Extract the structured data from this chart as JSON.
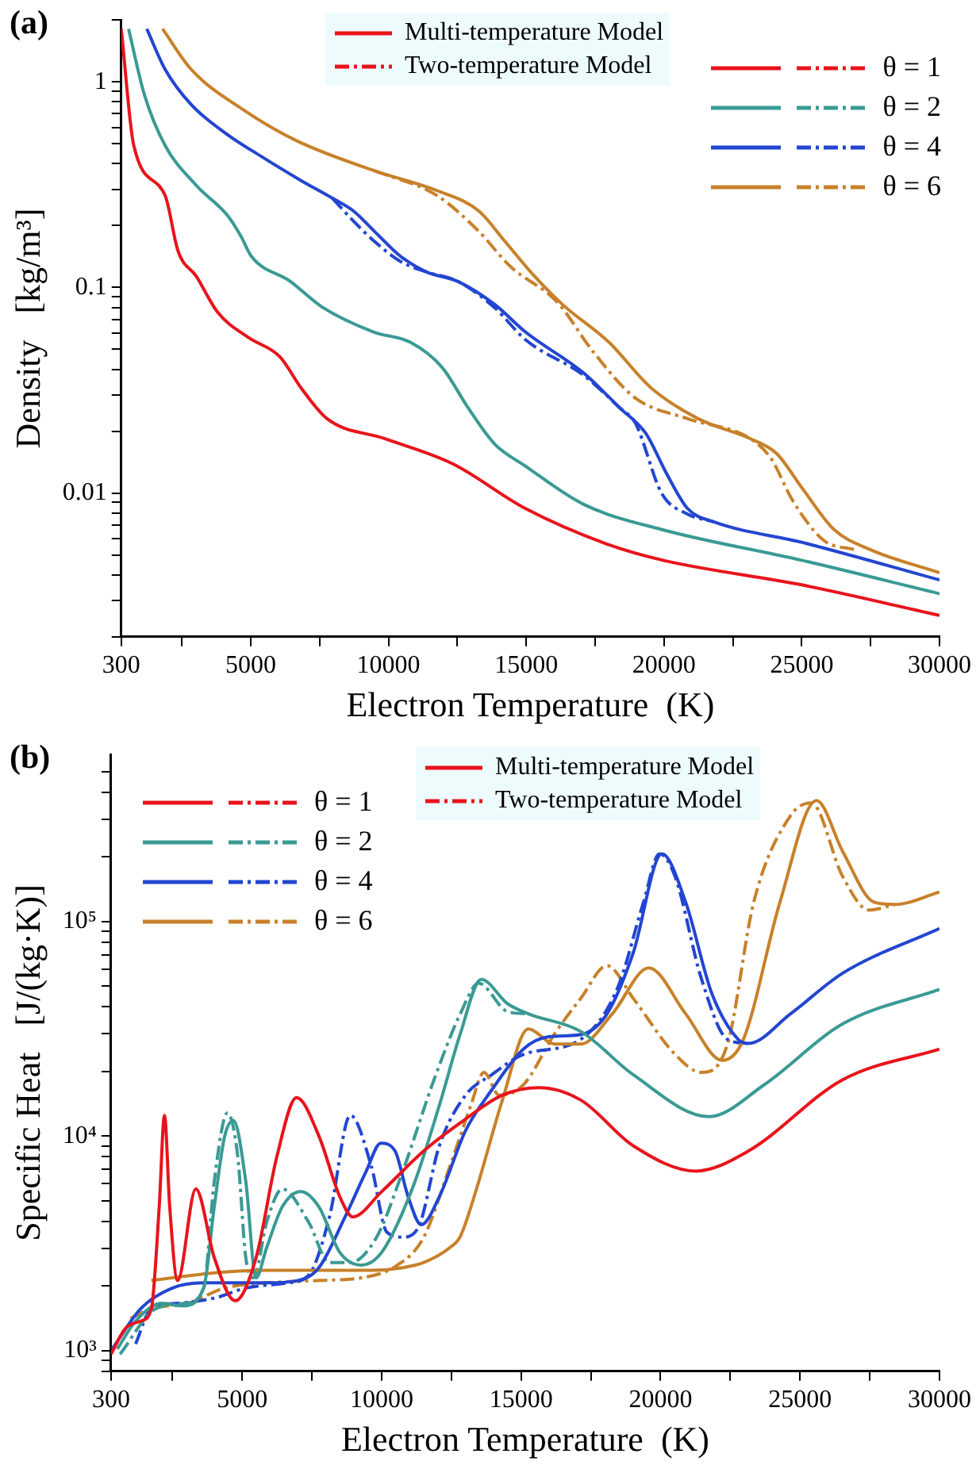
{
  "chart_data": [
    {
      "type": "line",
      "title": "(a)",
      "xlabel": "Electron Temperature  (K)",
      "ylabel": "Density   [kg/m³]",
      "log": true,
      "grid": false,
      "legend": "top right",
      "marker": "none",
      "annotations": [
        "Multi-temperature Model",
        "Two-temperature Model"
      ],
      "xlim": [
        300,
        30000
      ],
      "xticks": [
        300,
        {
          "value": 2500,
          "label": null
        },
        5000,
        {
          "value": 7500,
          "label": null
        },
        10000,
        {
          "value": 12500,
          "label": null
        },
        15000,
        {
          "value": 17500,
          "label": null
        },
        20000,
        {
          "value": 22500,
          "label": null
        },
        25000,
        {
          "value": 27500,
          "label": null
        },
        30000
      ],
      "ylim": [
        0.002,
        2
      ],
      "yticks": [
        {
          "value": 0.002,
          "label": null
        },
        {
          "value": 0.003,
          "label": null
        },
        {
          "value": 0.004,
          "label": null
        },
        {
          "value": 0.005,
          "label": null
        },
        {
          "value": 0.006,
          "label": null
        },
        {
          "value": 0.007,
          "label": null
        },
        {
          "value": 0.008,
          "label": null
        },
        {
          "value": 0.009,
          "label": null
        },
        0.01,
        {
          "value": 0.02,
          "label": null
        },
        {
          "value": 0.03,
          "label": null
        },
        {
          "value": 0.04,
          "label": null
        },
        {
          "value": 0.05,
          "label": null
        },
        {
          "value": 0.06,
          "label": null
        },
        {
          "value": 0.07,
          "label": null
        },
        {
          "value": 0.08,
          "label": null
        },
        {
          "value": 0.09,
          "label": null
        },
        0.1,
        {
          "value": 0.2,
          "label": null
        },
        {
          "value": 0.3,
          "label": null
        },
        {
          "value": 0.4,
          "label": null
        },
        {
          "value": 0.5,
          "label": null
        },
        {
          "value": 0.6,
          "label": null
        },
        {
          "value": 0.7,
          "label": null
        },
        {
          "value": 0.8,
          "label": null
        },
        {
          "value": 0.9,
          "label": null
        },
        1,
        {
          "value": 2,
          "label": null
        }
      ],
      "series": [
        {
          "name": "θ = 1",
          "color": "#e8141c",
          "line_style": "solid",
          "x": [
            300,
            755,
            1893,
            2365,
            3030,
            3790,
            4926,
            6060,
            6825,
            7770,
            9860,
            12320,
            14980,
            18010,
            20000,
            25030,
            30000
          ],
          "values": [
            1.81,
            0.49,
            0.28,
            0.15,
            0.113,
            0.076,
            0.057,
            0.046,
            0.0325,
            0.023,
            0.0184,
            0.0139,
            0.0084,
            0.0056,
            0.0047,
            0.00357,
            0.00254
          ]
        },
        {
          "color": "#e8141c",
          "line_style": "dashed"
        },
        {
          "name": "θ = 2",
          "color": "#3a9a94",
          "line_style": "solid",
          "x": [
            567,
            1136,
            1893,
            3030,
            4170,
            4640,
            5020,
            6440,
            7580,
            9480,
            10810,
            11950,
            12890,
            13840,
            14980,
            17070,
            19910,
            25030,
            30000
          ],
          "values": [
            1.81,
            0.87,
            0.49,
            0.313,
            0.223,
            0.178,
            0.142,
            0.107,
            0.0805,
            0.0606,
            0.054,
            0.0408,
            0.026,
            0.0174,
            0.0135,
            0.00883,
            0.00665,
            0.0047,
            0.00324
          ]
        },
        {
          "color": "#3a9a94",
          "line_style": "dashed"
        },
        {
          "name": "θ = 4",
          "color": "#2346d0",
          "line_style": "dashed",
          "x": [
            7960,
            8720,
            9480,
            10430,
            11380,
            12520,
            13840,
            14980,
            17070,
            18390,
            18960,
            19910,
            20860,
            21810
          ],
          "values": [
            0.272,
            0.211,
            0.168,
            0.134,
            0.119,
            0.107,
            0.08,
            0.0556,
            0.0375,
            0.026,
            0.0219,
            0.01,
            0.0079,
            0.00724
          ]
        },
        {
          "color": "#2346d0",
          "line_style": "solid",
          "x": [
            1228,
            1893,
            2840,
            4170,
            5310,
            6830,
            7960,
            8720,
            9480,
            10430,
            11380,
            12520,
            13840,
            14980,
            17070,
            18390,
            19340,
            20100,
            20860,
            21810,
            25030,
            30000
          ],
          "values": [
            1.81,
            1.15,
            0.775,
            0.552,
            0.44,
            0.331,
            0.272,
            0.236,
            0.188,
            0.142,
            0.119,
            0.107,
            0.083,
            0.0606,
            0.0385,
            0.026,
            0.0195,
            0.0124,
            0.0084,
            0.00724,
            0.00575,
            0.00378
          ]
        },
        {
          "name": "θ = 6",
          "color": "#c8812a",
          "line_style": "dashed",
          "x": [
            9480,
            11760,
            13270,
            14410,
            16120,
            17450,
            18960,
            20860,
            23130,
            23890,
            24650,
            25790,
            26930
          ],
          "values": [
            0.37,
            0.28,
            0.188,
            0.127,
            0.085,
            0.0483,
            0.029,
            0.023,
            0.0184,
            0.0147,
            0.0093,
            0.0059,
            0.0053
          ]
        },
        {
          "color": "#c8812a",
          "line_style": "solid",
          "x": [
            1800,
            2840,
            4740,
            6630,
            9480,
            11760,
            13270,
            14220,
            15160,
            16300,
            18010,
            19530,
            21240,
            23130,
            24080,
            25030,
            26170,
            27500,
            30000
          ],
          "values": [
            1.81,
            1.15,
            0.73,
            0.52,
            0.37,
            0.296,
            0.236,
            0.168,
            0.119,
            0.083,
            0.054,
            0.0325,
            0.023,
            0.0184,
            0.0156,
            0.0105,
            0.00665,
            0.0053,
            0.0041
          ]
        }
      ]
    },
    {
      "type": "line",
      "title": "(b)",
      "xlabel": "Electron Temperature  (K)",
      "ylabel": "Specific Heat   [J/(kg·K)]",
      "log": true,
      "grid": false,
      "legend": "top left",
      "marker": "none",
      "annotations": [
        "Multi-temperature Model",
        "Two-temperature Model"
      ],
      "xlim": [
        300,
        30000
      ],
      "xticks": [
        300,
        {
          "value": 2500,
          "label": null
        },
        5000,
        {
          "value": 7500,
          "label": null
        },
        10000,
        {
          "value": 12500,
          "label": null
        },
        15000,
        {
          "value": 17500,
          "label": null
        },
        20000,
        {
          "value": 22500,
          "label": null
        },
        25000,
        {
          "value": 27500,
          "label": null
        },
        30000
      ],
      "ylim": [
        800,
        600000
      ],
      "yticks": [
        {
          "value": 800,
          "label": null
        },
        {
          "value": 900,
          "label": null
        },
        {
          "value": 1000,
          "label": "10³"
        },
        {
          "value": 2000,
          "label": null
        },
        {
          "value": 3000,
          "label": null
        },
        {
          "value": 4000,
          "label": null
        },
        {
          "value": 5000,
          "label": null
        },
        {
          "value": 6000,
          "label": null
        },
        {
          "value": 7000,
          "label": null
        },
        {
          "value": 8000,
          "label": null
        },
        {
          "value": 9000,
          "label": null
        },
        {
          "value": 10000,
          "label": "10⁴"
        },
        {
          "value": 20000,
          "label": null
        },
        {
          "value": 30000,
          "label": null
        },
        {
          "value": 40000,
          "label": null
        },
        {
          "value": 50000,
          "label": null
        },
        {
          "value": 60000,
          "label": null
        },
        {
          "value": 70000,
          "label": null
        },
        {
          "value": 80000,
          "label": null
        },
        {
          "value": 90000,
          "label": null
        },
        {
          "value": 100000,
          "label": "10⁵"
        },
        {
          "value": 200000,
          "label": null
        },
        {
          "value": 300000,
          "label": null
        },
        {
          "value": 400000,
          "label": null
        },
        {
          "value": 500000,
          "label": null
        }
      ],
      "series": [
        {
          "name": "θ = 1",
          "color": "#e8141c",
          "line_style": "solid",
          "x": [
            300,
            807,
            1370,
            1746,
            2027,
            2215,
            2403,
            2685,
            3340,
            4000,
            4750,
            5500,
            6250,
            6950,
            7750,
            8500,
            8970,
            10000,
            11510,
            12820,
            14330,
            15640,
            17140,
            19020,
            21270,
            23150,
            26530,
            30000
          ],
          "values": [
            962,
            1265,
            1371,
            1571,
            4680,
            12470,
            4680,
            2120,
            5660,
            2710,
            1706,
            2710,
            8070,
            15100,
            10000,
            5210,
            4195,
            5500,
            8510,
            11500,
            15500,
            16800,
            14700,
            9000,
            6860,
            8510,
            18300,
            25400
          ]
        },
        {
          "color": "#e8141c",
          "line_style": "dashed"
        },
        {
          "name": "θ = 2",
          "color": "#3a9a94",
          "line_style": "dashed",
          "x": [
            620,
            1930,
            2960,
            3620,
            4000,
            4470,
            4840,
            5130,
            5410,
            5880,
            6440,
            7380,
            8130,
            8880,
            9820,
            10760,
            11880,
            12820,
            13480,
            14510,
            15260
          ],
          "values": [
            962,
            1571,
            1660,
            1955,
            6140,
            12800,
            8070,
            2710,
            2180,
            3970,
            5660,
            3970,
            2570,
            2570,
            3375,
            6860,
            18300,
            37100,
            51500,
            38000,
            37100
          ]
        },
        {
          "color": "#3a9a94",
          "line_style": "solid",
          "x": [
            525,
            1182,
            2120,
            2870,
            3620,
            4000,
            4375,
            4690,
            5130,
            5500,
            5880,
            6440,
            7100,
            7750,
            8500,
            9260,
            10000,
            11130,
            12070,
            12820,
            13570,
            14510,
            15260,
            17140,
            19020,
            21740,
            23710,
            26530,
            30000
          ],
          "values": [
            1016,
            1371,
            1660,
            1615,
            1955,
            4680,
            10000,
            11800,
            6140,
            2180,
            3020,
            4680,
            5510,
            4680,
            2866,
            2500,
            2866,
            5820,
            13900,
            29900,
            53700,
            41400,
            37100,
            30700,
            19300,
            12300,
            17300,
            33300,
            48200
          ]
        },
        {
          "name": "θ = 4",
          "color": "#2346d0",
          "line_style": "dashed",
          "x": [
            1180,
            1746,
            2690,
            4000,
            5130,
            6630,
            7380,
            8130,
            8880,
            9630,
            10190,
            10760,
            11320,
            12070,
            13010,
            13950,
            15080,
            17140,
            18450,
            19390,
            19960,
            20520,
            21460,
            22400,
            23150
          ],
          "values": [
            1074,
            1571,
            1660,
            1755,
            1955,
            2066,
            2240,
            4195,
            12470,
            7230,
            3560,
            3375,
            3760,
            9000,
            15500,
            19300,
            24000,
            28200,
            48700,
            123000,
            206500,
            162000,
            54300,
            28200,
            27000
          ]
        },
        {
          "color": "#2346d0",
          "line_style": "solid",
          "x": [
            340,
            1370,
            2500,
            3620,
            4940,
            5880,
            7000,
            7750,
            8690,
            9450,
            9970,
            10480,
            10950,
            11420,
            12070,
            13010,
            13950,
            15080,
            16000,
            17140,
            18080,
            19020,
            20050,
            20900,
            21840,
            22780,
            23150,
            24660,
            26530,
            30000
          ],
          "values": [
            1016,
            1571,
            1955,
            2066,
            2066,
            2066,
            2120,
            2432,
            4195,
            6860,
            9250,
            8510,
            5210,
            3860,
            5210,
            10600,
            16400,
            25400,
            29000,
            29700,
            37100,
            71400,
            206500,
            123000,
            46100,
            28200,
            27000,
            37100,
            57400,
            92700
          ]
        },
        {
          "name": "θ = 6",
          "color": "#c8812a",
          "line_style": "dashed",
          "x": [
            995,
            1746,
            3060,
            4375,
            5880,
            7750,
            9260,
            10570,
            11510,
            12450,
            13200,
            13670,
            14210,
            15080,
            16200,
            17140,
            18080,
            19020,
            20520,
            21460,
            22400,
            23340,
            24660,
            25400,
            26530,
            27470,
            28400
          ],
          "values": [
            1410,
            1571,
            1660,
            1955,
            2066,
            2120,
            2180,
            2500,
            3375,
            7230,
            13900,
            19800,
            15500,
            17300,
            29900,
            43800,
            62200,
            43800,
            24000,
            19800,
            26800,
            123000,
            311000,
            357000,
            162000,
            113000,
            120000
          ]
        },
        {
          "color": "#c8812a",
          "line_style": "solid",
          "x": [
            1746,
            4000,
            5880,
            7750,
            9630,
            10760,
            11510,
            12450,
            12820,
            13390,
            14330,
            15260,
            16200,
            17140,
            18270,
            19580,
            20900,
            22210,
            22970,
            24280,
            25590,
            26530,
            27650,
            28400,
            30000
          ],
          "values": [
            2120,
            2300,
            2364,
            2364,
            2364,
            2432,
            2570,
            3020,
            3400,
            5600,
            14700,
            31500,
            26800,
            26800,
            37100,
            60700,
            37100,
            22500,
            28200,
            123000,
            366000,
            212000,
            123000,
            120000,
            137000
          ]
        }
      ]
    }
  ]
}
